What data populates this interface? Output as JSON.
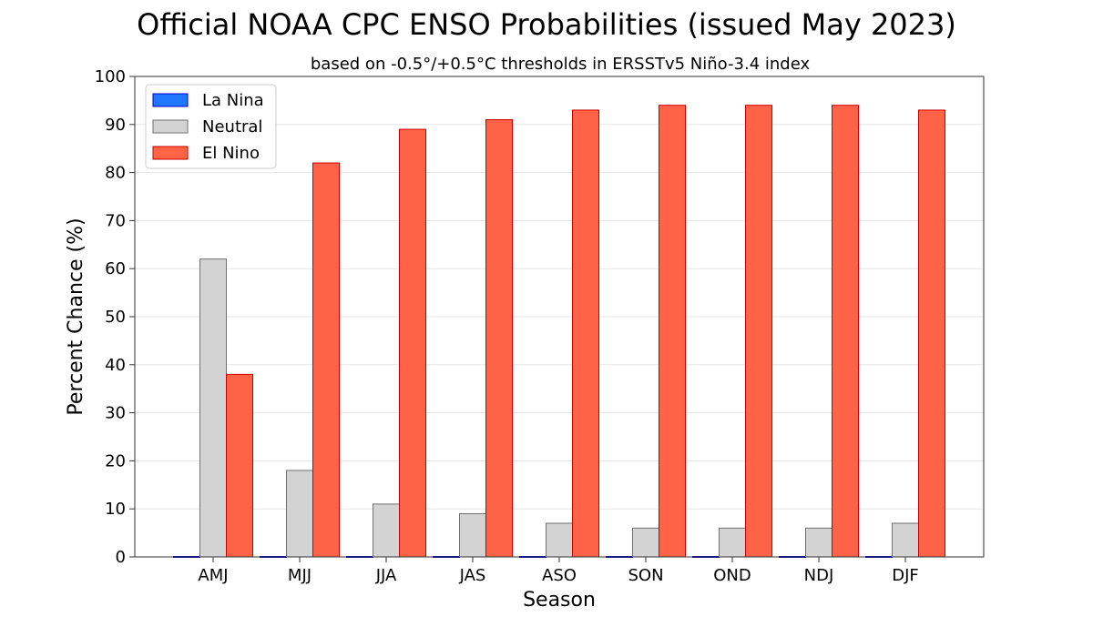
{
  "chart_data": {
    "type": "bar",
    "title": "Official NOAA CPC ENSO Probabilities (issued May 2023)",
    "subtitle": "based on -0.5°/+0.5°C thresholds in ERSSTv5 Niño-3.4 index",
    "xlabel": "Season",
    "ylabel": "Percent Chance (%)",
    "ylim": [
      0,
      100
    ],
    "yticks": [
      "0",
      "10",
      "20",
      "30",
      "40",
      "50",
      "60",
      "70",
      "80",
      "90",
      "100"
    ],
    "categories": [
      "AMJ",
      "MJJ",
      "JJA",
      "JAS",
      "ASO",
      "SON",
      "OND",
      "NDJ",
      "DJF"
    ],
    "series": [
      {
        "name": "La Nina",
        "color": "#1f77ff",
        "edge": "#0000cc",
        "values": [
          0,
          0,
          0,
          0,
          0,
          0,
          0,
          0,
          0
        ]
      },
      {
        "name": "Neutral",
        "color": "#d3d3d3",
        "edge": "#707070",
        "values": [
          62,
          18,
          11,
          9,
          7,
          6,
          6,
          6,
          7
        ]
      },
      {
        "name": "El Nino",
        "color": "#ff6347",
        "edge": "#cc0000",
        "values": [
          38,
          82,
          89,
          91,
          93,
          94,
          94,
          94,
          93
        ]
      }
    ],
    "grid": "horizontal",
    "legend": "top-left"
  }
}
